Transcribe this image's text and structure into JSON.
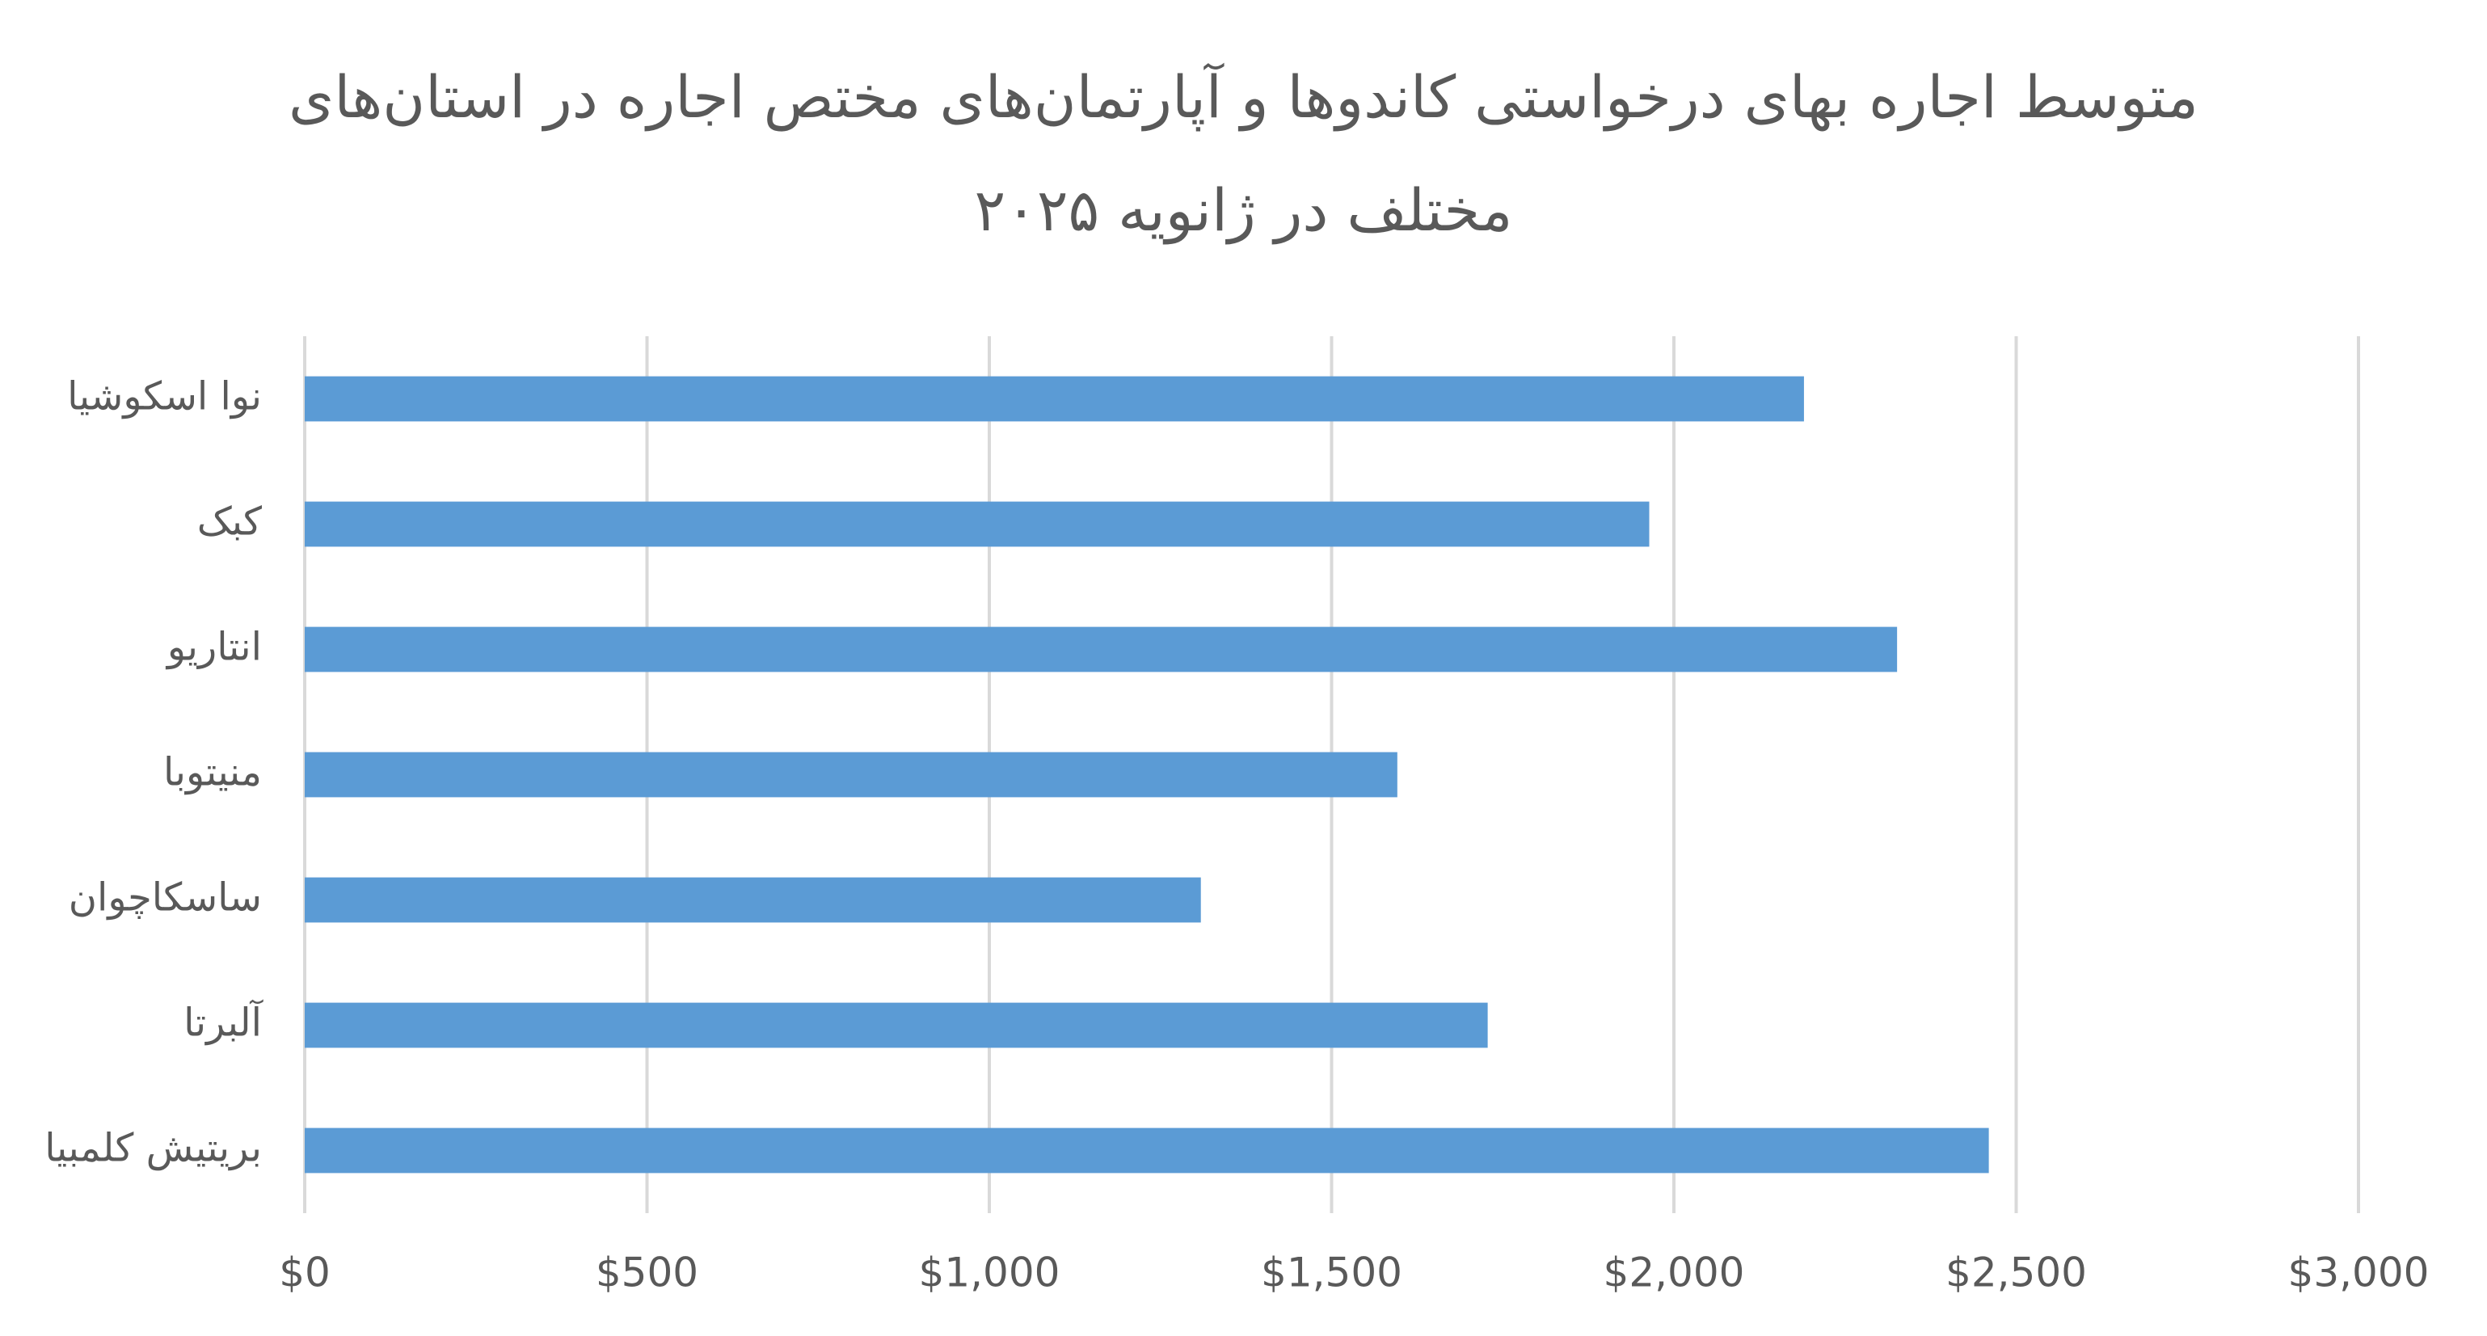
{
  "chart_data": {
    "type": "bar",
    "orientation": "horizontal",
    "title": "متوسط اجاره بهای درخواستی کاندوها و آپارتمان‌های مختص اجاره در استان‌های مختلف در ژانویه ۲۰۲۵",
    "categories": [
      "نوا اسکوشیا",
      "کبک",
      "انتاریو",
      "منیتوبا",
      "ساسکاچوان",
      "آلبرتا",
      "بریتیش کلمبیا"
    ],
    "values": [
      2190,
      1964,
      2326,
      1596,
      1309,
      1728,
      2460
    ],
    "color": "#5b9bd5",
    "xlim": [
      0,
      3000
    ],
    "xticks": [
      {
        "value": 0,
        "label": "$0"
      },
      {
        "value": 500,
        "label": "$500"
      },
      {
        "value": 1000,
        "label": "$1,000"
      },
      {
        "value": 1500,
        "label": "$1,500"
      },
      {
        "value": 2000,
        "label": "$2,000"
      },
      {
        "value": 2500,
        "label": "$2,500"
      },
      {
        "value": 3000,
        "label": "$3,000"
      }
    ],
    "grid": true
  }
}
